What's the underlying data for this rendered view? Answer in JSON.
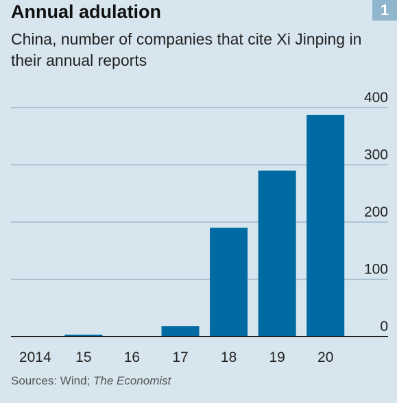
{
  "header": {
    "title": "Annual adulation",
    "badge": "1",
    "subtitle": "China, number of companies that cite Xi Jinping in their annual reports"
  },
  "footer": {
    "source_prefix": "Sources: Wind; ",
    "source_italic": "The Economist"
  },
  "colors": {
    "background": "#d6e5ee",
    "bar": "#006ba2",
    "gridline": "#9fb8c8",
    "baseline": "#222222"
  },
  "chart_data": {
    "type": "bar",
    "categories": [
      "2014",
      "15",
      "16",
      "17",
      "18",
      "19",
      "20"
    ],
    "values": [
      1,
      3,
      1,
      18,
      190,
      290,
      387
    ],
    "title": "Annual adulation",
    "subtitle": "China, number of companies that cite Xi Jinping in their annual reports",
    "xlabel": "",
    "ylabel": "",
    "ylim": [
      0,
      400
    ],
    "yticks": [
      0,
      100,
      200,
      300,
      400
    ],
    "ytick_position": "right",
    "grid": true,
    "legend": "none"
  }
}
